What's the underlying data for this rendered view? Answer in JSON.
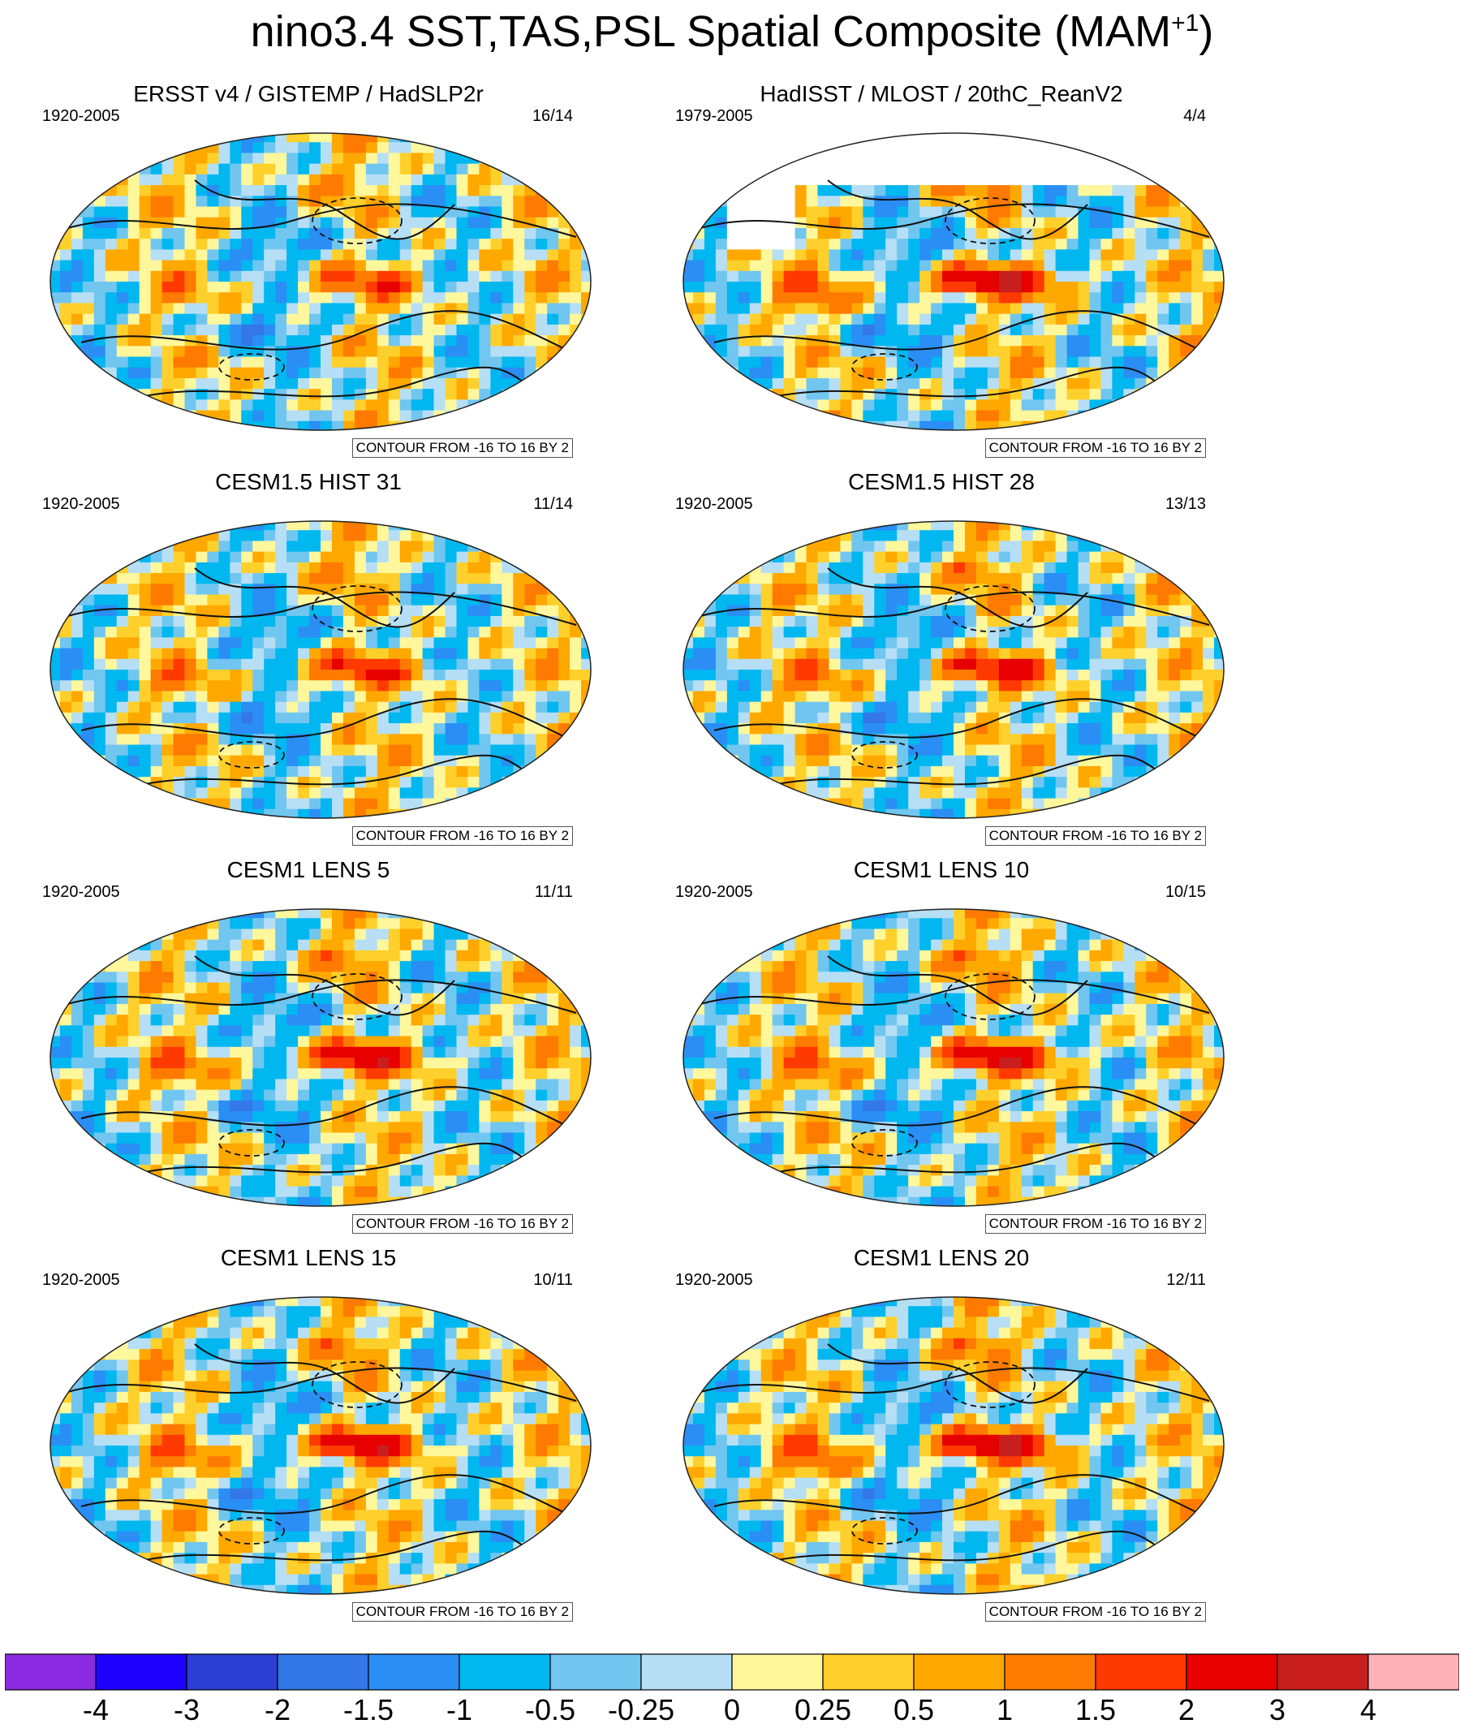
{
  "figure_title": "nino3.4 SST,TAS,PSL Spatial Composite (MAM",
  "figure_title_sup": "+1",
  "figure_title_close": ")",
  "chart_data": {
    "type": "heatmap",
    "title": "nino3.4 SST,TAS,PSL Spatial Composite (MAM+1)",
    "variables": [
      "SST",
      "TAS",
      "PSL"
    ],
    "season": "MAM+1",
    "contour_note": "CONTOUR FROM -16 TO 16 BY 2",
    "contour_min": -16,
    "contour_max": 16,
    "contour_interval": 2,
    "panels": [
      {
        "title": "ERSST v4 / GISTEMP / HadSLP2r",
        "period": "1920-2005",
        "ratio": "16/14",
        "contour_label": "CONTOUR FROM -16 TO 16 BY 2",
        "tropical_pacific_max": 1.2,
        "masked": false
      },
      {
        "title": "HadISST / MLOST / 20thC_ReanV2",
        "period": "1979-2005",
        "ratio": "4/4",
        "contour_label": "CONTOUR FROM -16 TO 16 BY 2",
        "tropical_pacific_max": 2.5,
        "masked": true
      },
      {
        "title": "CESM1.5 HIST 31",
        "period": "1920-2005",
        "ratio": "11/14",
        "contour_label": "CONTOUR FROM -16 TO 16 BY 2",
        "tropical_pacific_max": 1.5,
        "masked": false
      },
      {
        "title": "CESM1.5 HIST 28",
        "period": "1920-2005",
        "ratio": "13/13",
        "contour_label": "CONTOUR FROM -16 TO 16 BY 2",
        "tropical_pacific_max": 1.8,
        "masked": false
      },
      {
        "title": "CESM1 LENS 5",
        "period": "1920-2005",
        "ratio": "11/11",
        "contour_label": "CONTOUR FROM -16 TO 16 BY 2",
        "tropical_pacific_max": 2.0,
        "masked": false
      },
      {
        "title": "CESM1 LENS 10",
        "period": "1920-2005",
        "ratio": "10/15",
        "contour_label": "CONTOUR FROM -16 TO 16 BY 2",
        "tropical_pacific_max": 2.2,
        "masked": false
      },
      {
        "title": "CESM1 LENS 15",
        "period": "1920-2005",
        "ratio": "10/11",
        "contour_label": "CONTOUR FROM -16 TO 16 BY 2",
        "tropical_pacific_max": 2.0,
        "masked": false
      },
      {
        "title": "CESM1 LENS 20",
        "period": "1920-2005",
        "ratio": "12/11",
        "contour_label": "CONTOUR FROM -16 TO 16 BY 2",
        "tropical_pacific_max": 2.5,
        "masked": false
      }
    ],
    "colorbar": {
      "colors": [
        "#8a2be2",
        "#1e00ff",
        "#2b3fd4",
        "#3377e8",
        "#2a8ef5",
        "#00b7f0",
        "#71c6f0",
        "#b6dff5",
        "#fff79c",
        "#ffd02b",
        "#ffa800",
        "#ff7a00",
        "#ff3a00",
        "#e60000",
        "#c81e1e",
        "#ffb3b8"
      ],
      "labels": [
        "-4",
        "-3",
        "-2",
        "-1.5",
        "-1",
        "-0.5",
        "-0.25",
        "0",
        "0.25",
        "0.5",
        "1",
        "1.5",
        "2",
        "3",
        "4"
      ]
    }
  }
}
